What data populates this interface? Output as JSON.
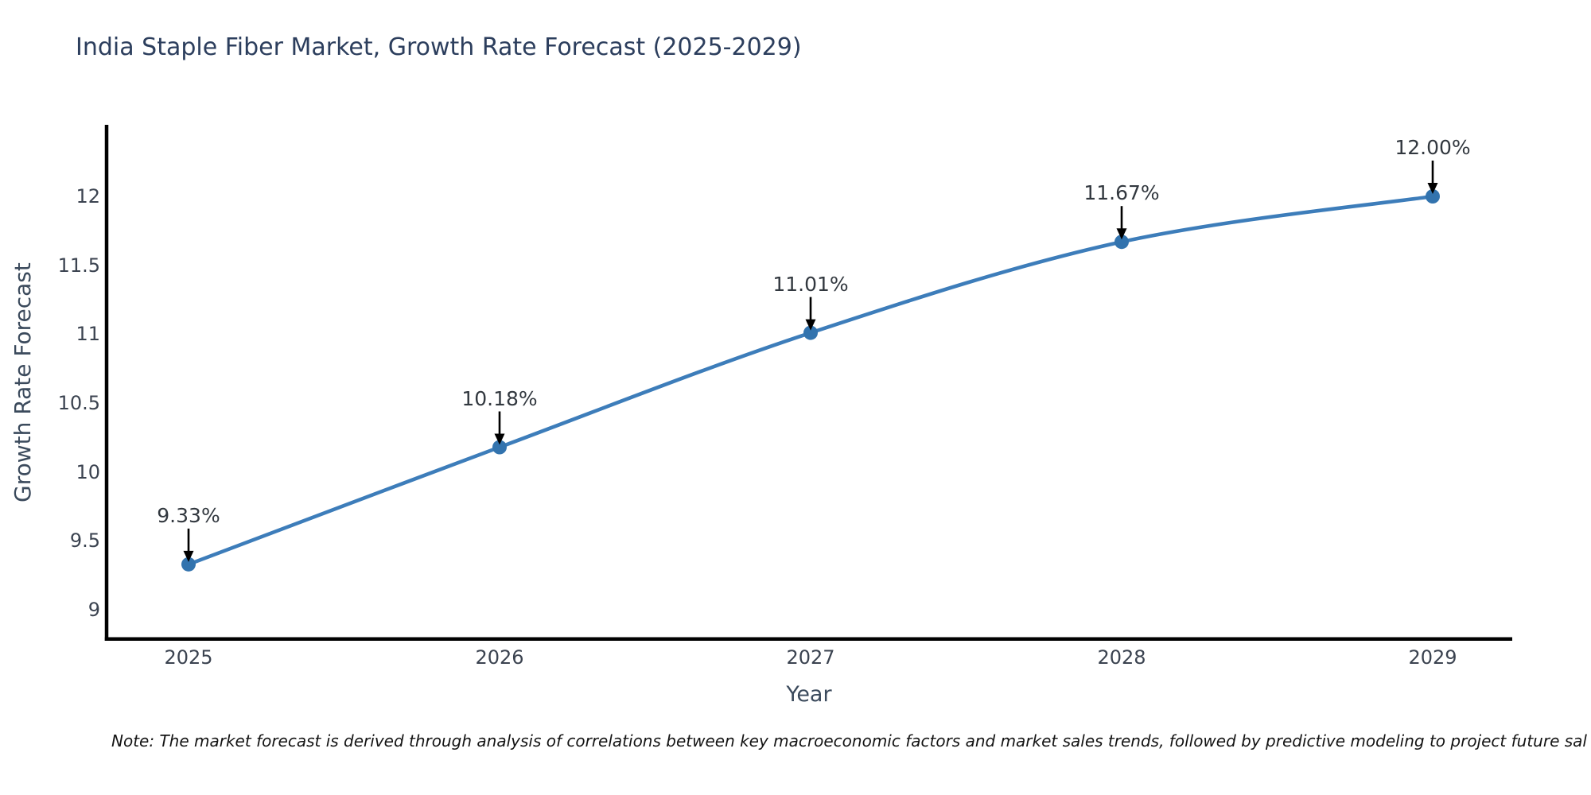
{
  "page": {
    "background": "#ffffff"
  },
  "chart_data": {
    "type": "line",
    "title": "India Staple Fiber Market, Growth Rate Forecast (2025-2029)",
    "xlabel": "Year",
    "ylabel": "Growth Rate Forecast",
    "x": [
      2025,
      2026,
      2027,
      2028,
      2029
    ],
    "xtick_labels": [
      "2025",
      "2026",
      "2027",
      "2028",
      "2029"
    ],
    "series": [
      {
        "name": "Growth Rate Forecast",
        "values": [
          9.33,
          10.18,
          11.01,
          11.67,
          12.0
        ]
      }
    ],
    "point_labels": [
      "9.33%",
      "10.18%",
      "11.01%",
      "11.67%",
      "12.00%"
    ],
    "yticks": [
      9,
      9.5,
      10,
      10.5,
      11,
      11.5,
      12
    ],
    "ytick_labels": [
      "9",
      "9.5",
      "10",
      "10.5",
      "11",
      "11.5",
      "12"
    ],
    "ylim": [
      8.78,
      12.55
    ],
    "xlim": [
      2024.73,
      2029.26
    ],
    "grid": false,
    "legend": false,
    "line_shape": "spline",
    "line_color": "#3d7dba",
    "marker_color": "#3273ae",
    "axis_color": "#000000",
    "annotation_arrow_color": "#000000",
    "annotation_text_color": "#32383f",
    "title_color": "#2c3e5d",
    "tick_color": "#3b4350"
  },
  "footnote": {
    "text": "Note: The market forecast is derived through analysis of correlations between key macroeconomic factors and market sales trends, followed by predictive modeling to project future sal"
  }
}
